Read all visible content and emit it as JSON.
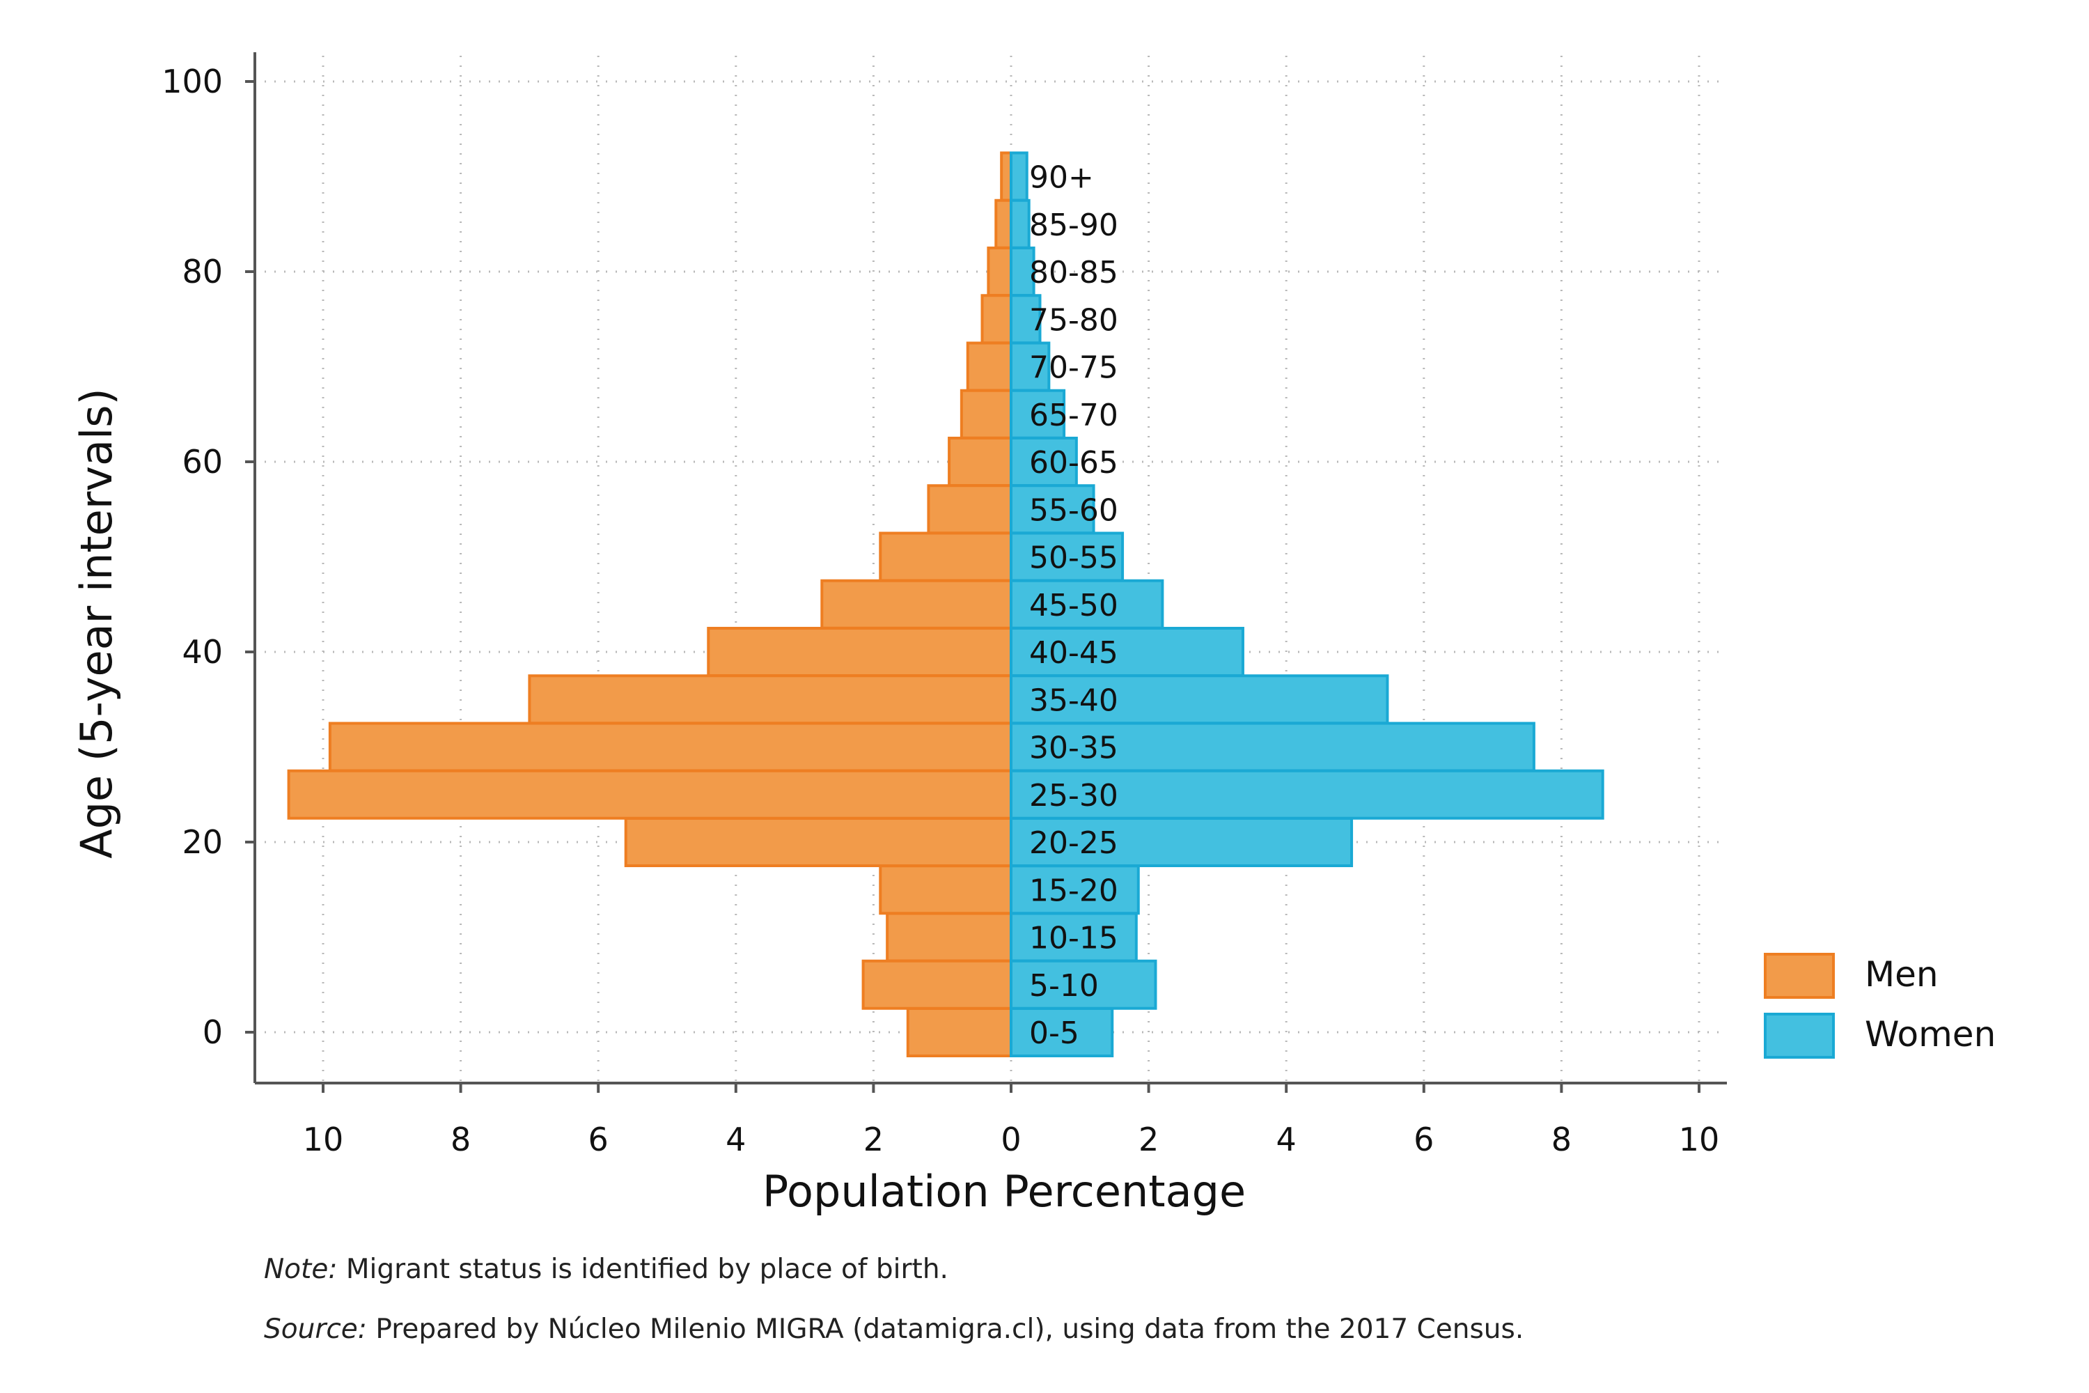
{
  "chart_data": {
    "type": "bar",
    "orientation": "horizontal",
    "subtype": "population-pyramid",
    "categories": [
      "0-5",
      "5-10",
      "10-15",
      "15-20",
      "20-25",
      "25-30",
      "30-35",
      "35-40",
      "40-45",
      "45-50",
      "50-55",
      "55-60",
      "60-65",
      "65-70",
      "70-75",
      "75-80",
      "80-85",
      "85-90",
      "90+"
    ],
    "category_centers": [
      0,
      5,
      10,
      15,
      20,
      25,
      30,
      35,
      40,
      45,
      50,
      55,
      60,
      65,
      70,
      75,
      80,
      85,
      90
    ],
    "series": [
      {
        "name": "Men",
        "side": "left",
        "color": "#F29B4A",
        "stroke": "#EE7E22",
        "values": [
          1.5,
          2.15,
          1.8,
          1.9,
          5.6,
          10.5,
          9.9,
          7.0,
          4.4,
          2.75,
          1.9,
          1.2,
          0.9,
          0.72,
          0.63,
          0.42,
          0.33,
          0.22,
          0.14
        ]
      },
      {
        "name": "Women",
        "side": "right",
        "color": "#43C0E0",
        "stroke": "#1AA9D4",
        "values": [
          1.47,
          2.1,
          1.82,
          1.85,
          4.95,
          8.6,
          7.6,
          5.47,
          3.37,
          2.2,
          1.62,
          1.2,
          0.95,
          0.77,
          0.55,
          0.42,
          0.33,
          0.26,
          0.23
        ]
      }
    ],
    "xlabel": "Population Percentage",
    "ylabel": "Age (5-year intervals)",
    "xlim": [
      -10,
      10
    ],
    "ylim": [
      0,
      100
    ],
    "x_ticks": [
      -10,
      -8,
      -6,
      -4,
      -2,
      0,
      2,
      4,
      6,
      8,
      10
    ],
    "x_tick_labels": [
      "10",
      "8",
      "6",
      "4",
      "2",
      "0",
      "2",
      "4",
      "6",
      "8",
      "10"
    ],
    "y_ticks": [
      0,
      20,
      40,
      60,
      80,
      100
    ],
    "y_tick_labels": [
      "0",
      "20",
      "40",
      "60",
      "80",
      "100"
    ],
    "grid": "dotted",
    "legend_position": "right"
  },
  "notes": {
    "note_label": "Note:",
    "note_text": "Migrant status is identified by place of birth.",
    "source_label": "Source:",
    "source_text": "Prepared by Núcleo Milenio MIGRA (datamigra.cl), using data from the 2017 Census."
  }
}
